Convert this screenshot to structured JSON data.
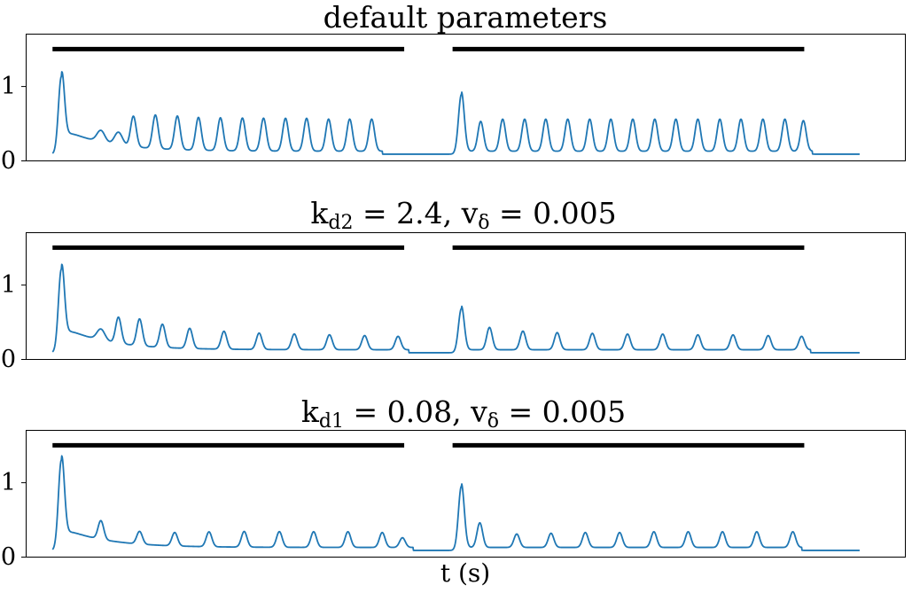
{
  "chart_data": [
    {
      "type": "line",
      "title": "default parameters",
      "title_parts": [
        "default parameters"
      ],
      "xlabel": "",
      "ylabel": "",
      "xlim": [
        0,
        100
      ],
      "ylim": [
        0,
        1.7
      ],
      "yticks": [
        {
          "value": 0,
          "label": "0"
        },
        {
          "value": 1,
          "label": "1"
        }
      ],
      "grid": false,
      "line_color": "#1f77b4",
      "stimulus_bars": [
        {
          "x_start": 3,
          "x_end": 43,
          "y": 1.5
        },
        {
          "x_start": 48.5,
          "x_end": 88.5,
          "y": 1.5
        }
      ],
      "trace": {
        "baseline": 0.09,
        "onset1": {
          "x": 4,
          "peak": 1.13
        },
        "plateau1": 0.4,
        "early_bumps1": [
          {
            "x": 8.5,
            "peak": 0.37
          },
          {
            "x": 10.5,
            "peak": 0.4
          }
        ],
        "peaks1": [
          {
            "x": 12.2,
            "peak": 0.5
          },
          {
            "x": 14.7,
            "peak": 0.54
          },
          {
            "x": 17.2,
            "peak": 0.54
          },
          {
            "x": 19.6,
            "peak": 0.53
          },
          {
            "x": 22.1,
            "peak": 0.53
          },
          {
            "x": 24.6,
            "peak": 0.53
          },
          {
            "x": 27.0,
            "peak": 0.53
          },
          {
            "x": 29.5,
            "peak": 0.53
          },
          {
            "x": 31.9,
            "peak": 0.53
          },
          {
            "x": 34.4,
            "peak": 0.52
          },
          {
            "x": 36.8,
            "peak": 0.52
          },
          {
            "x": 39.3,
            "peak": 0.52
          }
        ],
        "onset2": {
          "x": 49.5,
          "peak": 0.89
        },
        "peaks2": [
          {
            "x": 51.7,
            "peak": 0.49
          },
          {
            "x": 54.2,
            "peak": 0.52
          },
          {
            "x": 56.7,
            "peak": 0.52
          },
          {
            "x": 59.1,
            "peak": 0.52
          },
          {
            "x": 61.6,
            "peak": 0.52
          },
          {
            "x": 64.1,
            "peak": 0.52
          },
          {
            "x": 66.5,
            "peak": 0.52
          },
          {
            "x": 69.0,
            "peak": 0.52
          },
          {
            "x": 71.5,
            "peak": 0.52
          },
          {
            "x": 73.9,
            "peak": 0.52
          },
          {
            "x": 76.4,
            "peak": 0.52
          },
          {
            "x": 78.9,
            "peak": 0.52
          },
          {
            "x": 81.3,
            "peak": 0.52
          },
          {
            "x": 83.8,
            "peak": 0.52
          },
          {
            "x": 86.3,
            "peak": 0.52
          },
          {
            "x": 88.4,
            "peak": 0.5
          }
        ]
      }
    },
    {
      "type": "line",
      "title": "kd2 = 2.4, vδ = 0.005",
      "title_parts": [
        "k",
        "d2",
        " = 2.4, v",
        "δ",
        " = 0.005"
      ],
      "xlabel": "",
      "ylabel": "",
      "xlim": [
        0,
        100
      ],
      "ylim": [
        0,
        1.7
      ],
      "yticks": [
        {
          "value": 0,
          "label": "0"
        },
        {
          "value": 1,
          "label": "1"
        }
      ],
      "grid": false,
      "line_color": "#1f77b4",
      "stimulus_bars": [
        {
          "x_start": 3,
          "x_end": 43,
          "y": 1.5
        },
        {
          "x_start": 48.5,
          "x_end": 88.5,
          "y": 1.5
        }
      ],
      "trace": {
        "baseline": 0.09,
        "onset1": {
          "x": 4,
          "peak": 1.21
        },
        "plateau1": 0.41,
        "early_bumps1": [
          {
            "x": 8.5,
            "peak": 0.36
          }
        ],
        "peaks1": [
          {
            "x": 10.5,
            "peak": 0.44
          },
          {
            "x": 12.9,
            "peak": 0.45
          },
          {
            "x": 15.5,
            "peak": 0.4
          },
          {
            "x": 18.6,
            "peak": 0.36
          },
          {
            "x": 22.5,
            "peak": 0.33
          },
          {
            "x": 26.5,
            "peak": 0.31
          },
          {
            "x": 30.5,
            "peak": 0.3
          },
          {
            "x": 34.5,
            "peak": 0.29
          },
          {
            "x": 38.5,
            "peak": 0.28
          },
          {
            "x": 42.3,
            "peak": 0.27
          }
        ],
        "onset2": {
          "x": 49.5,
          "peak": 0.68
        },
        "peaks2": [
          {
            "x": 52.7,
            "peak": 0.39
          },
          {
            "x": 56.5,
            "peak": 0.34
          },
          {
            "x": 60.4,
            "peak": 0.32
          },
          {
            "x": 64.4,
            "peak": 0.31
          },
          {
            "x": 68.4,
            "peak": 0.3
          },
          {
            "x": 72.4,
            "peak": 0.3
          },
          {
            "x": 76.4,
            "peak": 0.29
          },
          {
            "x": 80.4,
            "peak": 0.29
          },
          {
            "x": 84.4,
            "peak": 0.28
          },
          {
            "x": 88.2,
            "peak": 0.27
          }
        ]
      }
    },
    {
      "type": "line",
      "title": "kd1 = 0.08, vδ = 0.005",
      "title_parts": [
        "k",
        "d1",
        " = 0.08, v",
        "δ",
        " = 0.005"
      ],
      "xlabel": "t (s)",
      "ylabel": "",
      "xlim": [
        0,
        100
      ],
      "ylim": [
        0,
        1.7
      ],
      "yticks": [
        {
          "value": 0,
          "label": "0"
        },
        {
          "value": 1,
          "label": "1"
        }
      ],
      "grid": false,
      "line_color": "#1f77b4",
      "stimulus_bars": [
        {
          "x_start": 3,
          "x_end": 43,
          "y": 1.5
        },
        {
          "x_start": 48.5,
          "x_end": 88.5,
          "y": 1.5
        }
      ],
      "trace": {
        "baseline": 0.09,
        "onset1": {
          "x": 4,
          "peak": 1.3
        },
        "plateau1": 0.36,
        "early_bumps1": [],
        "peaks1": [
          {
            "x": 8.5,
            "peak": 0.34
          },
          {
            "x": 12.9,
            "peak": 0.26
          },
          {
            "x": 16.9,
            "peak": 0.27
          },
          {
            "x": 20.8,
            "peak": 0.29
          },
          {
            "x": 24.8,
            "peak": 0.3
          },
          {
            "x": 28.8,
            "peak": 0.3
          },
          {
            "x": 32.7,
            "peak": 0.3
          },
          {
            "x": 36.6,
            "peak": 0.3
          },
          {
            "x": 40.5,
            "peak": 0.29
          },
          {
            "x": 42.8,
            "peak": 0.22
          }
        ],
        "onset2": {
          "x": 49.5,
          "peak": 0.95
        },
        "peaks2": [
          {
            "x": 51.6,
            "peak": 0.42
          },
          {
            "x": 55.8,
            "peak": 0.27
          },
          {
            "x": 59.7,
            "peak": 0.28
          },
          {
            "x": 63.6,
            "peak": 0.29
          },
          {
            "x": 67.5,
            "peak": 0.29
          },
          {
            "x": 71.4,
            "peak": 0.3
          },
          {
            "x": 75.3,
            "peak": 0.3
          },
          {
            "x": 79.2,
            "peak": 0.3
          },
          {
            "x": 83.1,
            "peak": 0.3
          },
          {
            "x": 87.2,
            "peak": 0.3
          }
        ]
      }
    }
  ]
}
